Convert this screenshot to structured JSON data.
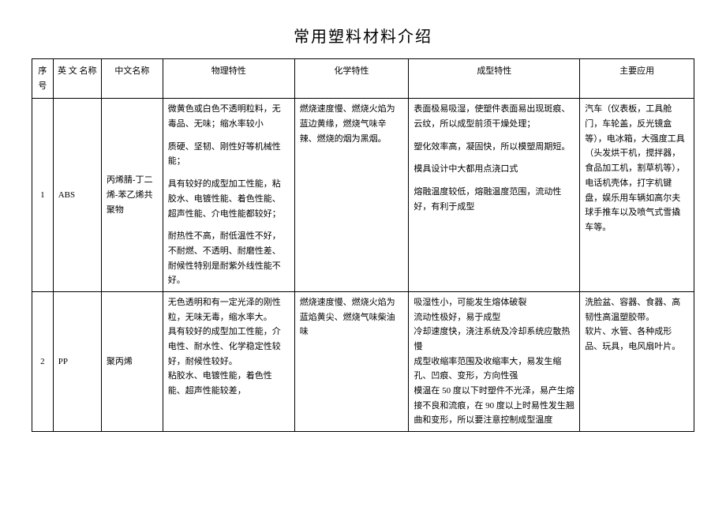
{
  "title": "常用塑料材料介绍",
  "headers": {
    "seq": "序号",
    "en": "英 文 名称",
    "cn": "中文名称",
    "phys": "物理特性",
    "chem": "化学特性",
    "form": "成型特性",
    "app": "主要应用"
  },
  "rows": [
    {
      "seq": "1",
      "en": "ABS",
      "cn": "丙烯腈-丁二烯-苯乙烯共聚物",
      "phys_p1": "微黄色或白色不透明粒料，无毒品、无味；缩水率较小",
      "phys_p2": "质硬、坚韧、刚性好等机械性能；",
      "phys_p3": "具有较好的成型加工性能，粘胶水、电镀性能、着色性能、超声性能、介电性能都较好；",
      "phys_p4": "耐热性不高，耐低温性不好，不耐燃、不透明、耐磨性差、耐候性特别是耐紫外线性能不好。",
      "chem": "燃烧速度慢、燃烧火焰为蓝边黄缘，燃烧气味辛辣、燃烧的烟为黑烟。",
      "form_p1": "表面极易吸湿，使塑件表面易出现斑痕、云纹，所以成型前须干燥处理；",
      "form_p2": "塑化效率高，凝固快，所以模塑周期短。",
      "form_p3": "模具设计中大都用点浇口式",
      "form_p4": "熔融温度较低，熔融温度范围，流动性好，有利于成型",
      "app": "汽车（仪表板，工具舱门，车轮盖，反光镜盒等），电冰箱，大强度工具（头发烘干机，搅拌器，食品加工机，割草机等），电话机壳体，打字机键盘，娱乐用车辆如高尔夫球手推车以及喷气式雪撬车等。"
    },
    {
      "seq": "2",
      "en": "PP",
      "cn": "聚丙烯",
      "phys_p1": "无色透明和有一定光泽的刚性粒，无味无毒，缩水率大。",
      "phys_p2": "具有较好的成型加工性能，介电性、耐水性、化学稳定性较好，耐候性较好。",
      "phys_p3": "粘胶水、电镀性能，着色性能、超声性能较差，",
      "chem": "燃烧速度慢、燃烧火焰为蓝焰黄尖、燃烧气味柴油味",
      "form_p1": "吸湿性小，可能发生熔体破裂",
      "form_p2": "流动性极好，易于成型",
      "form_p3": "冷却速度快，浇注系统及冷却系统应散热慢",
      "form_p4": "成型收缩率范围及收缩率大，易发生缩孔、凹痕、变形，方向性强",
      "form_p5": "模温在 50 度以下时塑件不光泽，易产生熔接不良和流痕，在 90 度以上时易性发生翘曲和变形，所以要注意控制成型温度",
      "app_p1": "洗脸盆、容器、食器、高韧性高温塑胶带。",
      "app_p2": "软片、水管、各种成形品、玩具，电风扇叶片。"
    }
  ]
}
